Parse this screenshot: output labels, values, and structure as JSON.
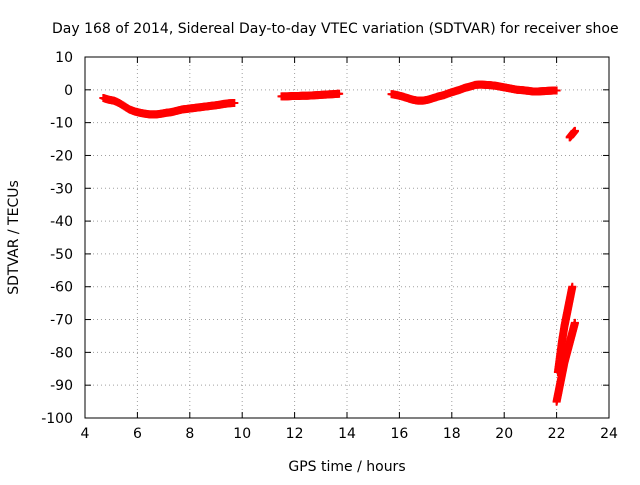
{
  "chart_data": {
    "type": "scatter",
    "title": "Day 168 of 2014, Sidereal Day-to-day VTEC variation (SDTVAR) for receiver shoe",
    "xlabel": "GPS time / hours",
    "ylabel": "SDTVAR / TECUs",
    "xlim": [
      4,
      24
    ],
    "ylim": [
      -100,
      10
    ],
    "x_ticks": [
      4,
      6,
      8,
      10,
      12,
      14,
      16,
      18,
      20,
      22,
      24
    ],
    "y_ticks": [
      10,
      0,
      -10,
      -20,
      -30,
      -40,
      -50,
      -60,
      -70,
      -80,
      -90,
      -100
    ],
    "grid": true,
    "marker": "plus",
    "series": [
      {
        "name": "segment-1",
        "color": "#ff0000",
        "x": [
          4.7,
          4.9,
          5.1,
          5.3,
          5.5,
          5.7,
          5.9,
          6.1,
          6.3,
          6.5,
          6.7,
          6.9,
          7.1,
          7.3,
          7.5,
          7.7,
          7.9,
          8.1,
          8.3,
          8.5,
          8.7,
          8.9,
          9.1,
          9.3,
          9.5,
          9.7
        ],
        "y": [
          -2.5,
          -3.0,
          -3.3,
          -4.0,
          -5.0,
          -6.0,
          -6.6,
          -7.0,
          -7.3,
          -7.5,
          -7.5,
          -7.3,
          -7.0,
          -6.8,
          -6.4,
          -6.0,
          -5.8,
          -5.6,
          -5.4,
          -5.2,
          -5.0,
          -4.8,
          -4.6,
          -4.3,
          -4.1,
          -4.0
        ]
      },
      {
        "name": "segment-2",
        "color": "#ff0000",
        "x": [
          11.5,
          11.7,
          11.9,
          12.1,
          12.3,
          12.5,
          12.7,
          12.9,
          13.1,
          13.3,
          13.5,
          13.7
        ],
        "y": [
          -2.0,
          -2.0,
          -1.9,
          -1.9,
          -1.8,
          -1.8,
          -1.7,
          -1.6,
          -1.5,
          -1.4,
          -1.3,
          -1.2
        ]
      },
      {
        "name": "segment-3",
        "color": "#ff0000",
        "x": [
          15.7,
          15.9,
          16.1,
          16.3,
          16.5,
          16.7,
          16.9,
          17.1,
          17.3,
          17.5,
          17.7,
          17.9,
          18.1,
          18.3,
          18.5,
          18.7,
          18.9,
          19.1,
          19.3,
          19.5,
          19.7,
          19.9,
          20.1,
          20.3,
          20.5,
          20.7,
          20.9,
          21.1,
          21.3,
          21.5,
          21.7,
          21.9,
          22.0
        ],
        "y": [
          -1.3,
          -1.6,
          -2.0,
          -2.5,
          -3.0,
          -3.3,
          -3.3,
          -3.0,
          -2.5,
          -2.0,
          -1.6,
          -1.0,
          -0.5,
          0.0,
          0.6,
          1.0,
          1.5,
          1.6,
          1.5,
          1.4,
          1.2,
          0.9,
          0.6,
          0.3,
          0.0,
          -0.1,
          -0.3,
          -0.5,
          -0.5,
          -0.4,
          -0.3,
          -0.2,
          -0.2
        ]
      },
      {
        "name": "segment-4",
        "color": "#ff0000",
        "x": [
          22.5,
          22.55,
          22.6,
          22.65,
          22.7
        ],
        "y": [
          -14.5,
          -14.0,
          -13.5,
          -13.0,
          -12.5
        ]
      },
      {
        "name": "segment-5",
        "color": "#ff0000",
        "x": [
          22.05,
          22.1,
          22.15,
          22.2,
          22.25,
          22.3,
          22.35,
          22.4,
          22.45,
          22.5,
          22.55,
          22.6
        ],
        "y": [
          -86.0,
          -83.0,
          -80.0,
          -77.0,
          -74.5,
          -72.0,
          -70.0,
          -68.0,
          -66.0,
          -64.0,
          -62.0,
          -60.0
        ]
      },
      {
        "name": "segment-6",
        "color": "#ff0000",
        "x": [
          22.0,
          22.05,
          22.1,
          22.15,
          22.2,
          22.25,
          22.3,
          22.35,
          22.4,
          22.45,
          22.5,
          22.55,
          22.6,
          22.65,
          22.7
        ],
        "y": [
          -95.0,
          -93.0,
          -91.0,
          -89.0,
          -87.0,
          -85.0,
          -83.0,
          -81.5,
          -80.0,
          -78.5,
          -77.0,
          -75.5,
          -74.0,
          -72.5,
          -71.0
        ]
      }
    ]
  }
}
